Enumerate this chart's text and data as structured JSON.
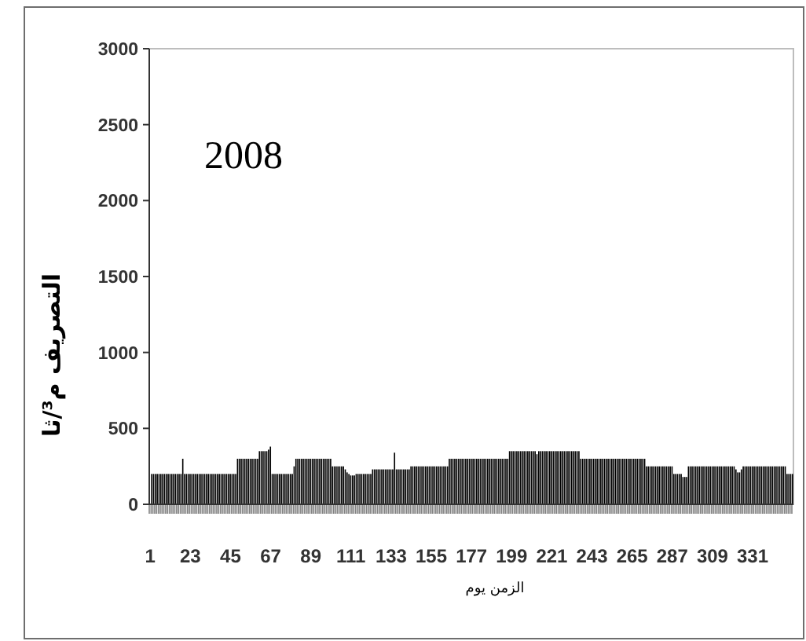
{
  "chart_data": {
    "type": "bar",
    "ylabel": "التصريف م³/ثا",
    "xlabel": "الزمن يوم",
    "annotations": [
      "2008"
    ],
    "color": "#000000",
    "ylim": [
      0,
      3000
    ],
    "yticks": [
      0,
      500,
      1000,
      1500,
      2000,
      2500,
      3000
    ],
    "grid": false,
    "categories": [
      "1",
      null,
      null,
      null,
      null,
      null,
      null,
      null,
      null,
      null,
      null,
      null,
      null,
      null,
      null,
      null,
      null,
      null,
      null,
      null,
      null,
      null,
      "23",
      null,
      null,
      null,
      null,
      null,
      null,
      null,
      null,
      null,
      null,
      null,
      null,
      null,
      null,
      null,
      null,
      null,
      null,
      null,
      null,
      null,
      "45",
      null,
      null,
      null,
      null,
      null,
      null,
      null,
      null,
      null,
      null,
      null,
      null,
      null,
      null,
      null,
      null,
      null,
      null,
      null,
      null,
      null,
      "67",
      null,
      null,
      null,
      null,
      null,
      null,
      null,
      null,
      null,
      null,
      null,
      null,
      null,
      null,
      null,
      null,
      null,
      null,
      null,
      null,
      null,
      "89",
      null,
      null,
      null,
      null,
      null,
      null,
      null,
      null,
      null,
      null,
      null,
      null,
      null,
      null,
      null,
      null,
      null,
      null,
      null,
      null,
      null,
      "111",
      null,
      null,
      null,
      null,
      null,
      null,
      null,
      null,
      null,
      null,
      null,
      null,
      null,
      null,
      null,
      null,
      null,
      null,
      null,
      null,
      null,
      "133",
      null,
      null,
      null,
      null,
      null,
      null,
      null,
      null,
      null,
      null,
      null,
      null,
      null,
      null,
      null,
      null,
      null,
      null,
      null,
      null,
      null,
      "155",
      null,
      null,
      null,
      null,
      null,
      null,
      null,
      null,
      null,
      null,
      null,
      null,
      null,
      null,
      null,
      null,
      null,
      null,
      null,
      null,
      null,
      "177",
      null,
      null,
      null,
      null,
      null,
      null,
      null,
      null,
      null,
      null,
      null,
      null,
      null,
      null,
      null,
      null,
      null,
      null,
      null,
      null,
      null,
      "199",
      null,
      null,
      null,
      null,
      null,
      null,
      null,
      null,
      null,
      null,
      null,
      null,
      null,
      null,
      null,
      null,
      null,
      null,
      null,
      null,
      null,
      "221",
      null,
      null,
      null,
      null,
      null,
      null,
      null,
      null,
      null,
      null,
      null,
      null,
      null,
      null,
      null,
      null,
      null,
      null,
      null,
      null,
      null,
      "243",
      null,
      null,
      null,
      null,
      null,
      null,
      null,
      null,
      null,
      null,
      null,
      null,
      null,
      null,
      null,
      null,
      null,
      null,
      null,
      null,
      null,
      "265",
      null,
      null,
      null,
      null,
      null,
      null,
      null,
      null,
      null,
      null,
      null,
      null,
      null,
      null,
      null,
      null,
      null,
      null,
      null,
      null,
      null,
      "287",
      null,
      null,
      null,
      null,
      null,
      null,
      null,
      null,
      null,
      null,
      null,
      null,
      null,
      null,
      null,
      null,
      null,
      null,
      null,
      null,
      null,
      "309",
      null,
      null,
      null,
      null,
      null,
      null,
      null,
      null,
      null,
      null,
      null,
      null,
      null,
      null,
      null,
      null,
      null,
      null,
      null,
      null,
      null,
      "331",
      null,
      null,
      null,
      null,
      null,
      null,
      null,
      null,
      null,
      null,
      null,
      null,
      null,
      null,
      null,
      null,
      null,
      null,
      null,
      null,
      null
    ],
    "values": [
      200,
      200,
      200,
      200,
      200,
      200,
      200,
      200,
      200,
      200,
      200,
      200,
      200,
      200,
      200,
      200,
      200,
      300,
      200,
      200,
      200,
      200,
      200,
      200,
      200,
      200,
      200,
      200,
      200,
      200,
      200,
      200,
      200,
      200,
      200,
      200,
      200,
      200,
      200,
      200,
      200,
      200,
      200,
      200,
      200,
      200,
      200,
      300,
      300,
      300,
      300,
      300,
      300,
      300,
      300,
      300,
      300,
      300,
      300,
      350,
      350,
      350,
      350,
      350,
      360,
      380,
      200,
      200,
      200,
      200,
      200,
      200,
      200,
      200,
      200,
      200,
      200,
      200,
      250,
      300,
      300,
      300,
      300,
      300,
      300,
      300,
      300,
      300,
      300,
      300,
      300,
      300,
      300,
      300,
      300,
      300,
      300,
      300,
      300,
      250,
      250,
      250,
      250,
      250,
      250,
      250,
      230,
      210,
      200,
      190,
      190,
      190,
      200,
      200,
      200,
      200,
      200,
      200,
      200,
      200,
      200,
      230,
      230,
      230,
      230,
      230,
      230,
      230,
      230,
      230,
      230,
      230,
      230,
      340,
      230,
      230,
      230,
      230,
      230,
      230,
      230,
      230,
      250,
      250,
      250,
      250,
      250,
      250,
      250,
      250,
      250,
      250,
      250,
      250,
      250,
      250,
      250,
      250,
      250,
      250,
      250,
      250,
      250,
      300,
      300,
      300,
      300,
      300,
      300,
      300,
      300,
      300,
      300,
      300,
      300,
      300,
      300,
      300,
      300,
      300,
      300,
      300,
      300,
      300,
      300,
      300,
      300,
      300,
      300,
      300,
      300,
      300,
      300,
      300,
      300,
      300,
      350,
      350,
      350,
      350,
      350,
      350,
      350,
      350,
      350,
      350,
      350,
      350,
      350,
      350,
      350,
      330,
      350,
      350,
      350,
      350,
      350,
      350,
      350,
      350,
      350,
      350,
      350,
      350,
      350,
      350,
      350,
      350,
      350,
      350,
      350,
      350,
      350,
      350,
      350,
      300,
      300,
      300,
      300,
      300,
      300,
      300,
      300,
      300,
      300,
      300,
      300,
      300,
      300,
      300,
      300,
      300,
      300,
      300,
      300,
      300,
      300,
      300,
      300,
      300,
      300,
      300,
      300,
      300,
      300,
      300,
      300,
      300,
      300,
      300,
      300,
      250,
      250,
      250,
      250,
      250,
      250,
      250,
      250,
      250,
      250,
      250,
      250,
      250,
      250,
      250,
      200,
      200,
      200,
      200,
      200,
      180,
      180,
      180,
      250,
      250,
      250,
      250,
      250,
      250,
      250,
      250,
      250,
      250,
      250,
      250,
      250,
      250,
      250,
      250,
      250,
      250,
      250,
      250,
      250,
      250,
      250,
      250,
      250,
      250,
      230,
      210,
      210,
      230,
      250,
      250,
      250,
      250,
      250,
      250,
      250,
      250,
      250,
      250,
      250,
      250,
      250,
      250,
      250,
      250,
      250,
      250,
      250,
      250,
      250,
      250,
      250,
      250,
      200,
      200,
      200,
      200
    ]
  }
}
